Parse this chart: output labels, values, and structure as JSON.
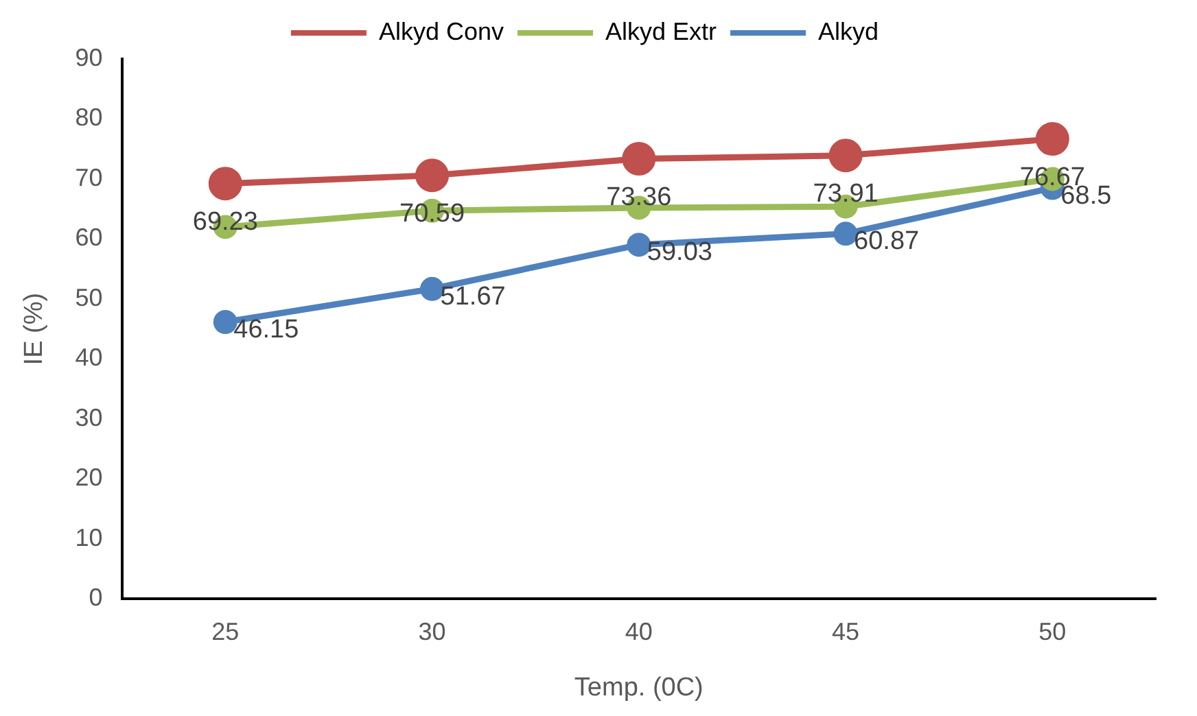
{
  "chart_data": {
    "type": "line",
    "xlabel": "Temp. (0C)",
    "ylabel": "IE (%)",
    "categories": [
      "25",
      "30",
      "40",
      "45",
      "50"
    ],
    "series": [
      {
        "name": "Alkyd Conv",
        "color": "#c0504d",
        "values": [
          69.23,
          70.59,
          73.36,
          73.91,
          76.67
        ],
        "value_labels": [
          "69.23",
          "70.59",
          "73.36",
          "73.91",
          "76.67"
        ]
      },
      {
        "name": "Alkyd Extr",
        "color": "#9bbb59",
        "values": [
          62.0,
          64.7,
          65.2,
          65.4,
          70.0
        ]
      },
      {
        "name": "Alkyd",
        "color": "#4f81bd",
        "values": [
          46.15,
          51.67,
          59.03,
          60.87,
          68.5
        ],
        "value_labels": [
          "46.15",
          "51.67",
          "59.03",
          "60.87",
          "68.5"
        ]
      }
    ],
    "ylim": [
      0,
      90
    ],
    "yticks": [
      0,
      10,
      20,
      30,
      40,
      50,
      60,
      70,
      80,
      90
    ],
    "grid": false,
    "legend": "top",
    "marker": "circle",
    "line_style": "solid"
  }
}
